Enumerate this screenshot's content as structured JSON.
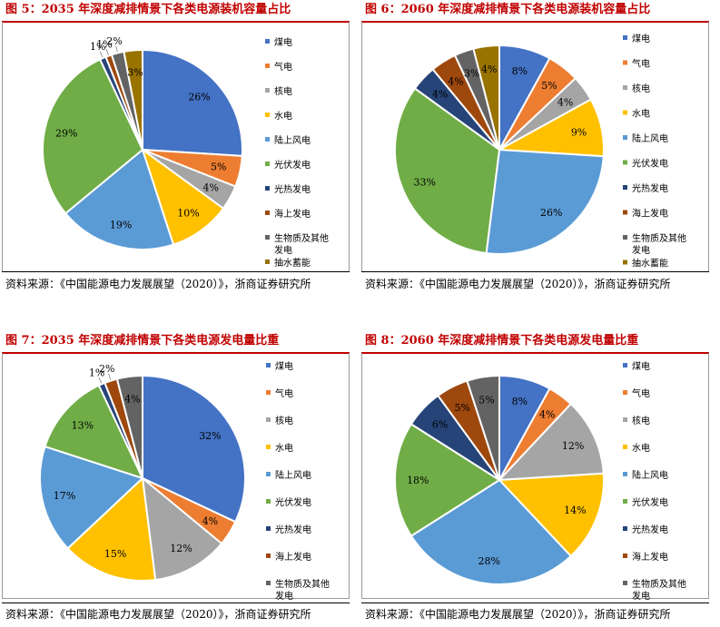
{
  "panels": [
    {
      "title": "图 5：2035 年深度减排情景下各类电源装机容量占比",
      "source": "资料来源：《中国能源电力发展展望（2020）》，浙商证券研究所"
    },
    {
      "title": "图 6：2060 年深度减排情景下各类电源装机容量占比",
      "source": "资料来源：《中国能源电力发展展望（2020）》，浙商证券研究所"
    },
    {
      "title": "图 7：2035 年深度减排情景下各类电源发电量比重",
      "source": "资料来源：《中国能源电力发展展望（2020）》，浙商证券研究所"
    },
    {
      "title": "图 8：2060 年深度减排情景下各类电源发电量比重",
      "source": "资料来源：《中国能源电力发展展望（2020）》，浙商证券研究所"
    }
  ],
  "colors": [
    "#4472c4",
    "#ed7d31",
    "#a5a5a5",
    "#ffc000",
    "#5b9bd5",
    "#70ad47",
    "#264478",
    "#9e480e",
    "#636363",
    "#997300"
  ],
  "chart_data": [
    {
      "type": "pie",
      "title": "图 5：2035 年深度减排情景下各类电源装机容量占比",
      "legend_position": "right",
      "categories": [
        "煤电",
        "气电",
        "核电",
        "水电",
        "陆上风电",
        "光伏发电",
        "光热发电",
        "海上发电",
        "生物质及其他发电",
        "抽水蓄能"
      ],
      "legend_labels": [
        "煤电",
        "气电",
        "核电",
        "水电",
        "陆上风电",
        "光伏发电",
        "光热发电",
        "海上发电",
        "生物质及其他发电",
        "抽水蓄能"
      ],
      "values": [
        26,
        5,
        4,
        10,
        19,
        29,
        1,
        1,
        2,
        3
      ],
      "labels": [
        "26%",
        "5%",
        "4%",
        "10%",
        "19%",
        "29%",
        "1%",
        "1%",
        "2%",
        "3%"
      ]
    },
    {
      "type": "pie",
      "title": "图 6：2060 年深度减排情景下各类电源装机容量占比",
      "legend_position": "right",
      "categories": [
        "煤电",
        "气电",
        "核电",
        "水电",
        "陆上风电",
        "光伏发电",
        "光热发电",
        "海上发电",
        "生物质及其他发电",
        "抽水蓄能"
      ],
      "legend_labels": [
        "煤电",
        "气电",
        "核电",
        "水电",
        "陆上风电",
        "光伏发电",
        "光热发电",
        "海上发电",
        "生物质及其他发电",
        "抽水蓄能"
      ],
      "values": [
        8,
        5,
        4,
        9,
        26,
        33,
        4,
        4,
        3,
        4
      ],
      "labels": [
        "8%",
        "5%",
        "4%",
        "9%",
        "26%",
        "33%",
        "4%",
        "4%",
        "3%",
        "4%"
      ]
    },
    {
      "type": "pie",
      "title": "图 7：2035 年深度减排情景下各类电源发电量比重",
      "legend_position": "right",
      "categories": [
        "煤电",
        "气电",
        "核电",
        "水电",
        "陆上风电",
        "光伏发电",
        "光热发电",
        "海上发电",
        "生物质及其他发电"
      ],
      "legend_labels": [
        "煤电",
        "气电",
        "核电",
        "水电",
        "陆上风电",
        "光伏发电",
        "光热发电",
        "海上发电",
        "生物质及其他发电"
      ],
      "values": [
        32,
        4,
        12,
        15,
        17,
        13,
        1,
        2,
        4
      ],
      "labels": [
        "32%",
        "4%",
        "12%",
        "15%",
        "17%",
        "13%",
        "1%",
        "2%",
        "4%"
      ]
    },
    {
      "type": "pie",
      "title": "图 8：2060 年深度减排情景下各类电源发电量比重",
      "legend_position": "right",
      "categories": [
        "煤电",
        "气电",
        "核电",
        "水电",
        "陆上风电",
        "光伏发电",
        "光热发电",
        "海上发电",
        "生物质及其他发电"
      ],
      "legend_labels": [
        "煤电",
        "气电",
        "核电",
        "水电",
        "陆上风电",
        "光伏发电",
        "光热发电",
        "海上发电",
        "生物质及其他发电"
      ],
      "values": [
        8,
        4,
        12,
        14,
        28,
        18,
        6,
        5,
        5
      ],
      "labels": [
        "8%",
        "4%",
        "12%",
        "14%",
        "28%",
        "18%",
        "6%",
        "5%",
        "5%"
      ]
    }
  ]
}
